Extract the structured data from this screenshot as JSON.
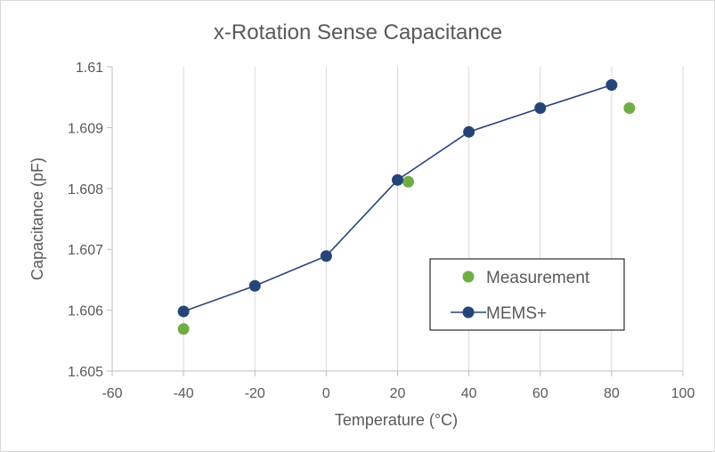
{
  "chart_data": {
    "type": "line",
    "title": "x-Rotation Sense Capacitance",
    "xlabel": "Temperature (°C)",
    "ylabel": "Capacitance (pF)",
    "xlim": [
      -60,
      100
    ],
    "ylim": [
      1.605,
      1.61
    ],
    "x_ticks": [
      -60,
      -40,
      -20,
      0,
      20,
      40,
      60,
      80,
      100
    ],
    "x_tick_labels": [
      "-60",
      "-40",
      "-20",
      "0",
      "20",
      "40",
      "60",
      "80",
      "100"
    ],
    "y_ticks": [
      1.605,
      1.606,
      1.607,
      1.608,
      1.609,
      1.61
    ],
    "y_tick_labels": [
      "1.605",
      "1.606",
      "1.607",
      "1.608",
      "1.609",
      "1.61"
    ],
    "grid": "vertical",
    "legend_position": "lower-right",
    "series": [
      {
        "name": "Measurement",
        "style": "markers",
        "color": "#70ad47",
        "x": [
          -40,
          23,
          85
        ],
        "y": [
          1.60569,
          1.60811,
          1.60932
        ]
      },
      {
        "name": "MEMS+",
        "style": "line-markers",
        "color": "#264478",
        "x": [
          -40,
          -20,
          0,
          20,
          40,
          60,
          80
        ],
        "y": [
          1.60598,
          1.6064,
          1.60689,
          1.60814,
          1.60893,
          1.60932,
          1.6097
        ]
      }
    ]
  }
}
